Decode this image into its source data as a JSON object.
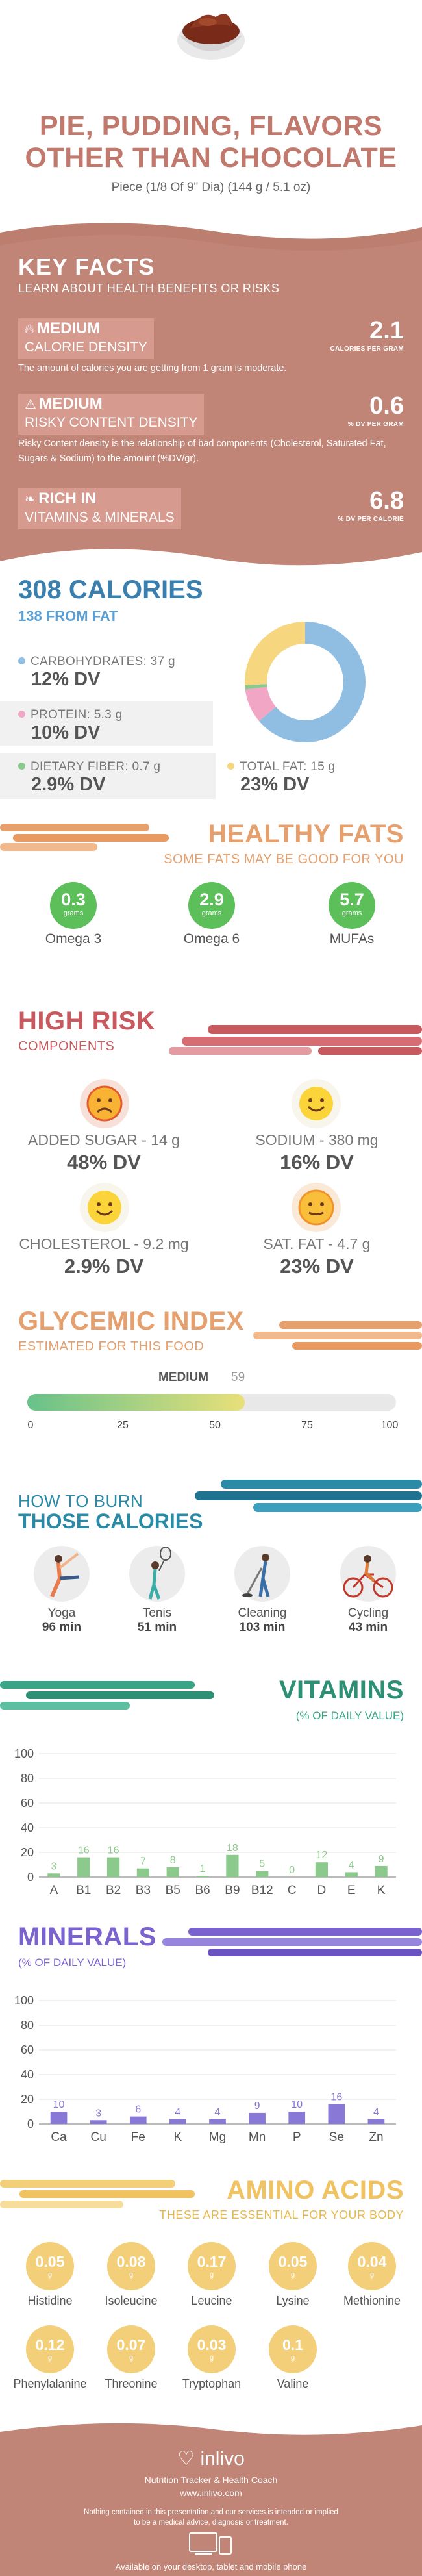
{
  "header": {
    "title_line1": "PIE, PUDDING, FLAVORS",
    "title_line2": "OTHER THAN CHOCOLATE",
    "serving": "Piece (1/8 Of 9\" Dia) (144 g / 5.1 oz)"
  },
  "key_facts": {
    "title": "KEY FACTS",
    "subtitle": "LEARN ABOUT HEALTH BENEFITS OR RISKS",
    "items": [
      {
        "level": "MEDIUM",
        "label": "CALORIE DENSITY",
        "value": "2.1",
        "unit": "CALORIES PER GRAM",
        "desc": "The amount of calories you are getting from 1 gram is moderate.",
        "icon": "flame-icon"
      },
      {
        "level": "MEDIUM",
        "label": "RISKY CONTENT DENSITY",
        "value": "0.6",
        "unit": "% DV PER GRAM",
        "desc": "Risky Content density is the relationship of bad components (Cholesterol, Saturated Fat, Sugars & Sodium) to the amount (%DV/gr).",
        "icon": "warning-icon"
      },
      {
        "level": "RICH  IN",
        "label": "VITAMINS & MINERALS",
        "value": "6.8",
        "unit": "% DV PER CALORIE",
        "desc": "",
        "icon": "leaf-icon"
      }
    ]
  },
  "calories": {
    "title": "308 CALORIES",
    "subtitle": "138 FROM FAT",
    "nutrients": [
      {
        "label": "CARBOHYDRATES: 37 g",
        "value": "12% DV",
        "color": "#90bde2"
      },
      {
        "label": "PROTEIN: 5.3 g",
        "value": "10% DV",
        "color": "#f0a6c4"
      },
      {
        "label": "DIETARY FIBER: 0.7 g",
        "value": "2.9% DV",
        "color": "#8cc98c"
      },
      {
        "label": "TOTAL FAT: 15 g",
        "value": "23% DV",
        "color": "#f6d77f"
      }
    ],
    "donut": [
      {
        "name": "carbohydrates",
        "grams": 37,
        "color": "#90bde2"
      },
      {
        "name": "protein",
        "grams": 5.3,
        "color": "#f0a6c4"
      },
      {
        "name": "fiber",
        "grams": 0.7,
        "color": "#8cc98c"
      },
      {
        "name": "fat",
        "grams": 15,
        "color": "#f6d77f"
      }
    ]
  },
  "healthy_fats": {
    "title": "HEALTHY FATS",
    "subtitle": "SOME FATS MAY BE GOOD FOR YOU",
    "items": [
      {
        "value": "0.3",
        "unit": "grams",
        "name": "Omega 3"
      },
      {
        "value": "2.9",
        "unit": "grams",
        "name": "Omega 6"
      },
      {
        "value": "5.7",
        "unit": "grams",
        "name": "MUFAs"
      }
    ]
  },
  "high_risk": {
    "title": "HIGH RISK",
    "subtitle": "COMPONENTS",
    "items": [
      {
        "label": "ADDED SUGAR - 14 g",
        "value": "48% DV",
        "face": "sad"
      },
      {
        "label": "SODIUM - 380 mg",
        "value": "16% DV",
        "face": "happy"
      },
      {
        "label": "CHOLESTEROL - 9.2 mg",
        "value": "2.9% DV",
        "face": "happy"
      },
      {
        "label": "SAT. FAT - 4.7 g",
        "value": "23% DV",
        "face": "neutral"
      }
    ]
  },
  "glycemic": {
    "title": "GLYCEMIC INDEX",
    "subtitle": "ESTIMATED FOR THIS FOOD",
    "level": "MEDIUM",
    "value": 59,
    "value_text": "59",
    "ticks": [
      "0",
      "25",
      "50",
      "75",
      "100"
    ]
  },
  "burn": {
    "title_line1": "HOW TO BURN",
    "title_line2": "THOSE CALORIES",
    "items": [
      {
        "name": "Yoga",
        "minutes": "96 min",
        "icon": "yoga-icon"
      },
      {
        "name": "Tenis",
        "minutes": "51 min",
        "icon": "tennis-icon"
      },
      {
        "name": "Cleaning",
        "minutes": "103 min",
        "icon": "cleaning-icon"
      },
      {
        "name": "Cycling",
        "minutes": "43 min",
        "icon": "cycling-icon"
      }
    ]
  },
  "vitamins": {
    "title": "VITAMINS",
    "subtitle": "(% OF DAILY VALUE)",
    "color": "#8cc98c"
  },
  "minerals": {
    "title": "MINERALS",
    "subtitle": "(% OF DAILY VALUE)",
    "color": "#8a78d6"
  },
  "chart_data": [
    {
      "type": "bar",
      "title": "VITAMINS",
      "subtitle": "(% OF DAILY VALUE)",
      "categories": [
        "A",
        "B1",
        "B2",
        "B3",
        "B5",
        "B6",
        "B9",
        "B12",
        "C",
        "D",
        "E",
        "K"
      ],
      "values": [
        3,
        16,
        16,
        7,
        8,
        1,
        18,
        5,
        0,
        12,
        4,
        9
      ],
      "yticks": [
        "0",
        "20",
        "40",
        "60",
        "80",
        "100"
      ],
      "ylim": [
        0,
        100
      ],
      "grid": true
    },
    {
      "type": "bar",
      "title": "MINERALS",
      "subtitle": "(% OF DAILY VALUE)",
      "categories": [
        "Ca",
        "Cu",
        "Fe",
        "K",
        "Mg",
        "Mn",
        "P",
        "Se",
        "Zn"
      ],
      "values": [
        10,
        3,
        6,
        4,
        4,
        9,
        10,
        16,
        4
      ],
      "yticks": [
        "0",
        "20",
        "40",
        "60",
        "80",
        "100"
      ],
      "ylim": [
        0,
        100
      ],
      "grid": true
    }
  ],
  "amino": {
    "title": "AMINO ACIDS",
    "subtitle": "THESE ARE ESSENTIAL FOR YOUR BODY",
    "unit": "g",
    "items": [
      {
        "value": "0.05",
        "name": "Histidine"
      },
      {
        "value": "0.08",
        "name": "Isoleucine"
      },
      {
        "value": "0.17",
        "name": "Leucine"
      },
      {
        "value": "0.05",
        "name": "Lysine"
      },
      {
        "value": "0.04",
        "name": "Methionine"
      },
      {
        "value": "0.12",
        "name": "Phenylalanine"
      },
      {
        "value": "0.07",
        "name": "Threonine"
      },
      {
        "value": "0.03",
        "name": "Tryptophan"
      },
      {
        "value": "0.1",
        "name": "Valine"
      }
    ]
  },
  "footer": {
    "brand": "inlivo",
    "tagline": "Nutrition Tracker & Health Coach",
    "url": "www.inlivo.com",
    "disclaimer_line1": "Nothing contained in this presentation and our services is intended or implied",
    "disclaimer_line2": "to be a medical advice, diagnosis or treatment.",
    "available": "Available on your desktop, tablet and mobile phone"
  }
}
